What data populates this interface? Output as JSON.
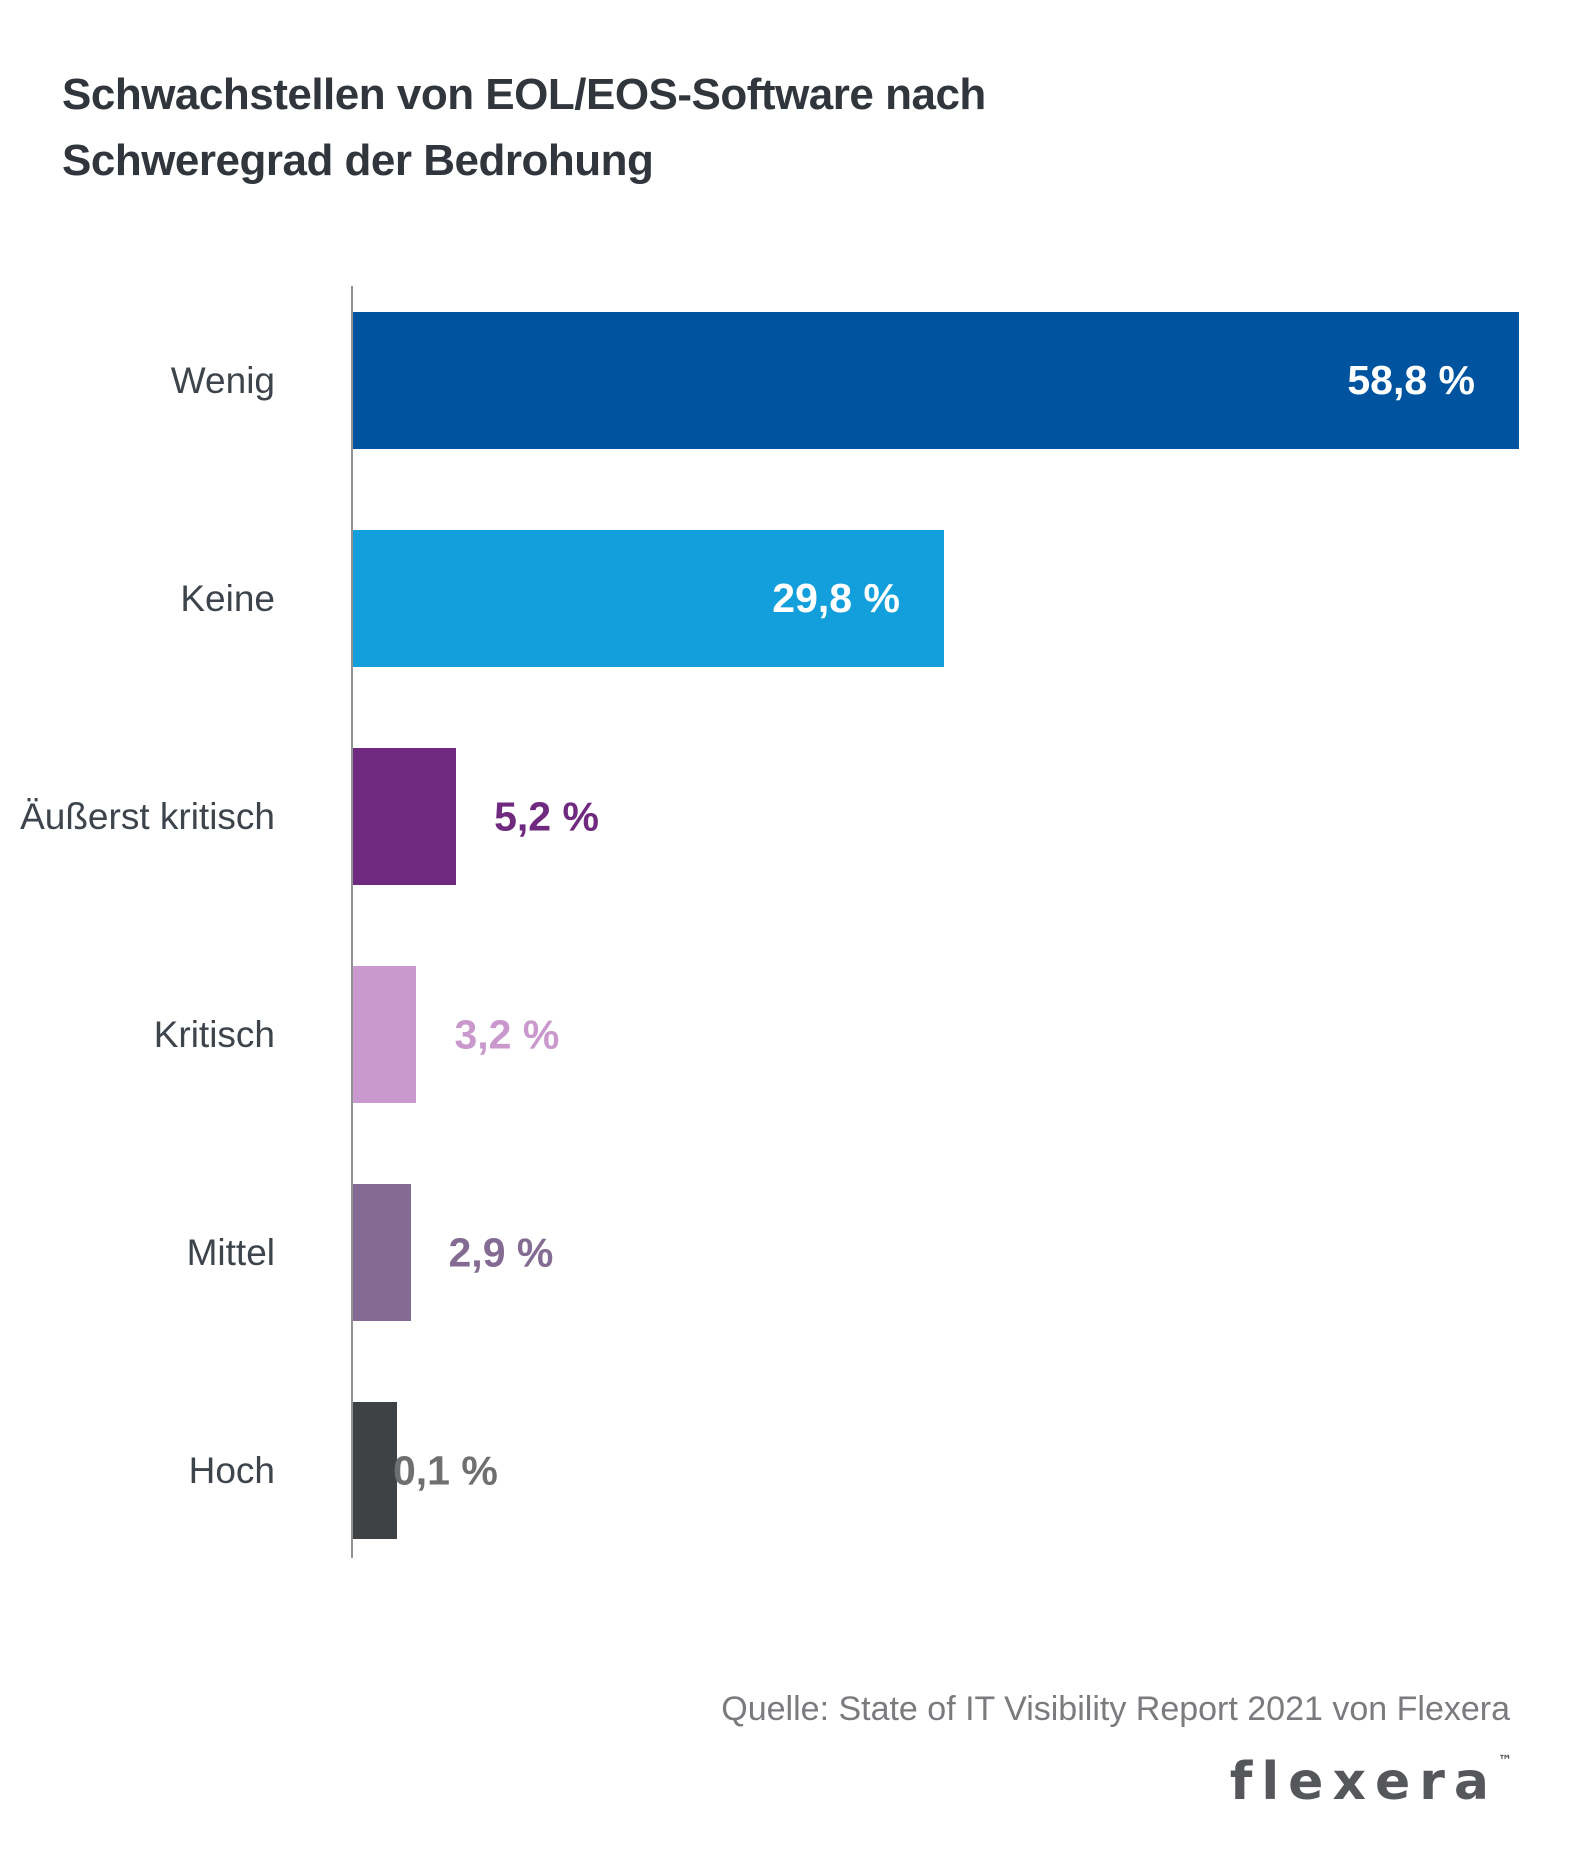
{
  "title": {
    "line1": "Schwachstellen von EOL/EOS-Software nach",
    "line2": "Schweregrad der Bedrohung"
  },
  "chart_data": {
    "type": "bar",
    "orientation": "horizontal",
    "title": "Schwachstellen von EOL/EOS-Software nach Schweregrad der Bedrohung",
    "categories": [
      "Wenig",
      "Keine",
      "Äußerst kritisch",
      "Kritisch",
      "Mittel",
      "Hoch"
    ],
    "values": [
      58.8,
      29.8,
      5.2,
      3.2,
      2.9,
      0.1
    ],
    "value_labels": [
      "58,8 %",
      "29,8 %",
      "5,2 %",
      "3,2 %",
      "2,9 %",
      "0,1 %"
    ],
    "bar_colors": [
      "#00539F",
      "#129FDB",
      "#6F2A80",
      "#C998CC",
      "#836B93",
      "#3F4245"
    ],
    "value_label_colors": [
      "#FFFFFF",
      "#FFFFFF",
      "#6F2A80",
      "#C998CC",
      "#836B93",
      "#6E6F71"
    ],
    "value_label_placement": [
      "inside",
      "inside",
      "outside",
      "outside",
      "outside",
      "outside"
    ],
    "xlim": [
      0,
      58.8
    ],
    "grid": false,
    "legend": false,
    "axis_color": "#909294"
  },
  "source": {
    "text": "Quelle: State of IT Visibility Report 2021 von Flexera"
  },
  "logo": {
    "text": "flexera",
    "trademark": "™"
  }
}
